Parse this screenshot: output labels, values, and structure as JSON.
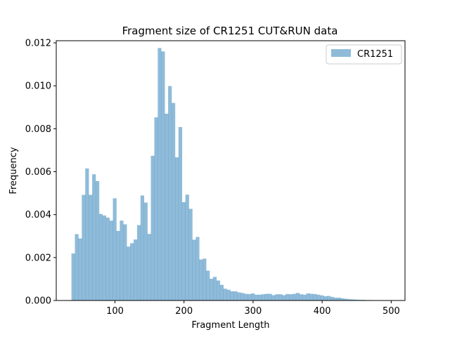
{
  "chart_data": {
    "type": "bar",
    "title": "Fragment size of CR1251 CUT&RUN data",
    "xlabel": "Fragment Length",
    "ylabel": "Frequency",
    "xlim": [
      15,
      520
    ],
    "ylim": [
      0,
      0.0121
    ],
    "xticks": [
      {
        "value": 100,
        "label": "100"
      },
      {
        "value": 200,
        "label": "200"
      },
      {
        "value": 300,
        "label": "300"
      },
      {
        "value": 400,
        "label": "400"
      },
      {
        "value": 500,
        "label": "500"
      }
    ],
    "yticks": [
      {
        "value": 0.0,
        "label": "0.000"
      },
      {
        "value": 0.002,
        "label": "0.002"
      },
      {
        "value": 0.004,
        "label": "0.004"
      },
      {
        "value": 0.006,
        "label": "0.006"
      },
      {
        "value": 0.008,
        "label": "0.008"
      },
      {
        "value": 0.01,
        "label": "0.010"
      },
      {
        "value": 0.012,
        "label": "0.012"
      }
    ],
    "grid": false,
    "legend_position": "top-right",
    "bin_start": 37,
    "bin_width": 5.0,
    "series": [
      {
        "name": "CR1251",
        "color": "#1f77b4",
        "opacity": 0.5,
        "values": [
          0.00219,
          0.00309,
          0.00289,
          0.00492,
          0.00615,
          0.00492,
          0.00588,
          0.00556,
          0.00403,
          0.00396,
          0.00386,
          0.00372,
          0.00476,
          0.00324,
          0.00372,
          0.00355,
          0.00251,
          0.00267,
          0.00284,
          0.00351,
          0.00489,
          0.00456,
          0.0031,
          0.00674,
          0.00853,
          0.01176,
          0.0116,
          0.0087,
          0.00999,
          0.0092,
          0.00667,
          0.00808,
          0.00458,
          0.00493,
          0.00427,
          0.00283,
          0.00296,
          0.00191,
          0.00195,
          0.00139,
          0.00101,
          0.0011,
          0.00093,
          0.00073,
          0.00055,
          0.0005,
          0.00043,
          0.00043,
          0.00038,
          0.00035,
          0.00031,
          0.0003,
          0.00033,
          0.00027,
          0.00027,
          0.00029,
          0.00031,
          0.00031,
          0.00025,
          0.00029,
          0.00029,
          0.00025,
          0.0003,
          0.00029,
          0.00031,
          0.00035,
          0.00029,
          0.00027,
          0.00033,
          0.00031,
          0.0003,
          0.00027,
          0.00024,
          0.0002,
          0.00021,
          0.00017,
          0.00013,
          0.00013,
          0.0001,
          8e-05,
          6e-05,
          5e-05,
          4e-05,
          3e-05,
          3e-05,
          2e-05,
          2e-05,
          1e-05,
          1e-05,
          1e-05,
          1e-05,
          1e-05,
          1e-05
        ]
      }
    ]
  }
}
